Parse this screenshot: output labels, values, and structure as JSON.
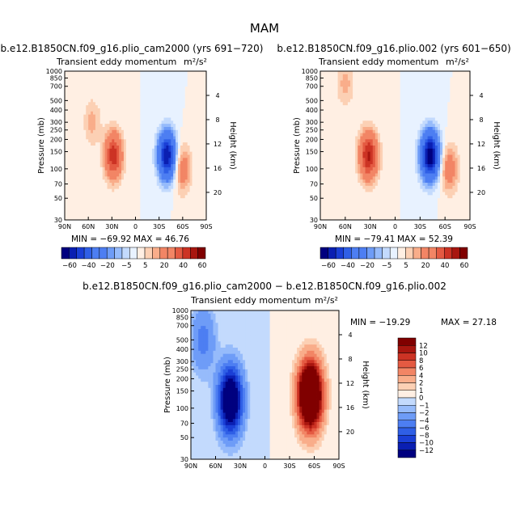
{
  "figure": {
    "title": "MAM"
  },
  "units_label": "m²/s²",
  "axis_labels": {
    "pressure": "Pressure (mb)",
    "height": "Height (km)"
  },
  "colors": {
    "scale": [
      "#00007f",
      "#0a1fb2",
      "#1a3fd6",
      "#2f5fe6",
      "#4d7ef2",
      "#6e9cf7",
      "#96bbfb",
      "#c3dafd",
      "#e8f2ff",
      "#ffefe3",
      "#fcd0b4",
      "#f9ad8a",
      "#f28565",
      "#e45a42",
      "#cc3324",
      "#a8160f",
      "#800000"
    ],
    "frame": "#000000"
  },
  "chart_data": [
    {
      "type": "heatmap",
      "panel": "top-left",
      "title": "b.e12.B1850CN.f09_g16.plio_cam2000 (yrs 691−720)",
      "subtitle": "Transient eddy momentum",
      "units": "m²/s²",
      "x_ticks": [
        "90N",
        "60N",
        "30N",
        "0",
        "30S",
        "60S",
        "90S"
      ],
      "y_ticks": [
        "30",
        "50",
        "70",
        "100",
        "150",
        "200",
        "250",
        "300",
        "400",
        "500",
        "700",
        "850",
        "1000"
      ],
      "height_ticks": [
        "4",
        "8",
        "12",
        "16",
        "20"
      ],
      "ylim": [
        1000,
        30
      ],
      "ylabel": "Pressure (mb)",
      "y2label": "Height (km)",
      "min_label": "MIN = −69.92",
      "max_label": "MAX =  46.76",
      "min": -69.92,
      "max": 46.76,
      "levels": [
        -70,
        -60,
        -50,
        -40,
        -30,
        -20,
        -15,
        -10,
        -5,
        0,
        5,
        10,
        15,
        20,
        30,
        40,
        50,
        60
      ],
      "colorbar": {
        "placement": "below",
        "labels": [
          "−60",
          "−40",
          "−20",
          "−5",
          "5",
          "20",
          "40",
          "60"
        ]
      },
      "features": [
        {
          "lat": 28,
          "pressure": 220,
          "value": 46.76
        },
        {
          "lat": -40,
          "pressure": 220,
          "value": -69.92
        },
        {
          "lat": -60,
          "pressure": 300,
          "value": 22
        },
        {
          "lat": 55,
          "pressure": 100,
          "value": 12
        }
      ]
    },
    {
      "type": "heatmap",
      "panel": "top-right",
      "title": "b.e12.B1850CN.f09_g16.plio.002 (yrs 601−650)",
      "subtitle": "Transient eddy momentum",
      "units": "m²/s²",
      "x_ticks": [
        "90N",
        "60N",
        "30N",
        "0",
        "30S",
        "60S",
        "90S"
      ],
      "y_ticks": [
        "30",
        "50",
        "70",
        "100",
        "150",
        "200",
        "250",
        "300",
        "400",
        "500",
        "700",
        "850",
        "1000"
      ],
      "height_ticks": [
        "4",
        "8",
        "12",
        "16",
        "20"
      ],
      "ylim": [
        1000,
        30
      ],
      "ylabel": "Pressure (mb)",
      "y2label": "Height (km)",
      "min_label": "MIN = −79.41",
      "max_label": "MAX =  52.39",
      "min": -79.41,
      "max": 52.39,
      "levels": [
        -70,
        -60,
        -50,
        -40,
        -30,
        -20,
        -15,
        -10,
        -5,
        0,
        5,
        10,
        15,
        20,
        30,
        40,
        50,
        60
      ],
      "colorbar": {
        "placement": "below",
        "labels": [
          "−60",
          "−40",
          "−20",
          "−5",
          "5",
          "20",
          "40",
          "60"
        ]
      },
      "features": [
        {
          "lat": 32,
          "pressure": 220,
          "value": 52.39
        },
        {
          "lat": -42,
          "pressure": 220,
          "value": -79.41
        },
        {
          "lat": -65,
          "pressure": 300,
          "value": 22
        },
        {
          "lat": 60,
          "pressure": 40,
          "value": 12
        }
      ]
    },
    {
      "type": "heatmap",
      "panel": "bottom",
      "title": "b.e12.B1850CN.f09_g16.plio_cam2000 − b.e12.B1850CN.f09_g16.plio.002",
      "subtitle": "Transient eddy momentum",
      "units": "m²/s²",
      "x_ticks": [
        "90N",
        "60N",
        "30N",
        "0",
        "30S",
        "60S",
        "90S"
      ],
      "y_ticks": [
        "30",
        "50",
        "70",
        "100",
        "150",
        "200",
        "250",
        "300",
        "400",
        "500",
        "700",
        "850",
        "1000"
      ],
      "height_ticks": [
        "4",
        "8",
        "12",
        "16",
        "20"
      ],
      "ylim": [
        1000,
        30
      ],
      "ylabel": "Pressure (mb)",
      "y2label": "Height (km)",
      "min_label": "MIN = −19.29",
      "max_label": "MAX =  27.18",
      "min": -19.29,
      "max": 27.18,
      "levels": [
        -12,
        -10,
        -8,
        -6,
        -4,
        -2,
        -1,
        0,
        1,
        2,
        4,
        6,
        8,
        10,
        12
      ],
      "colorbar": {
        "placement": "right",
        "labels": [
          "12",
          "10",
          "8",
          "6",
          "4",
          "2",
          "1",
          "0",
          "−1",
          "−2",
          "−4",
          "−6",
          "−8",
          "−10",
          "−12"
        ]
      },
      "features": [
        {
          "lat": 42,
          "pressure": 250,
          "value": -19.29
        },
        {
          "lat": -55,
          "pressure": 220,
          "value": 27.18
        },
        {
          "lat": 75,
          "pressure": 60,
          "value": -5
        }
      ]
    }
  ]
}
